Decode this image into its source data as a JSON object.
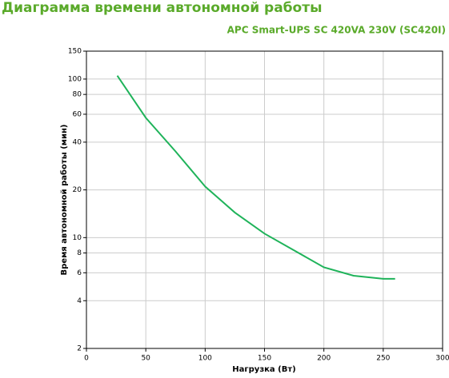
{
  "chart_data": {
    "type": "line",
    "title": "Диаграмма времени автономной работы",
    "subtitle": "APC Smart-UPS SC 420VA 230V (SC420I)",
    "x_label": "Нагрузка (Вт)",
    "y_label": "Время автономной работы (мин)",
    "x": [
      26,
      50,
      75,
      100,
      125,
      150,
      175,
      200,
      225,
      250,
      260
    ],
    "values": [
      105,
      57,
      35,
      21,
      14.4,
      10.6,
      8.3,
      6.5,
      5.75,
      5.5,
      5.5
    ],
    "color": "#1fb35a",
    "log_y": true,
    "grid": true,
    "xlim": [
      0,
      300
    ],
    "xticks": [
      0,
      50,
      100,
      150,
      200,
      250,
      300
    ],
    "ylim": [
      2,
      150
    ],
    "yticks": [
      2,
      4,
      6,
      8,
      10,
      20,
      40,
      60,
      80,
      100,
      150
    ]
  }
}
